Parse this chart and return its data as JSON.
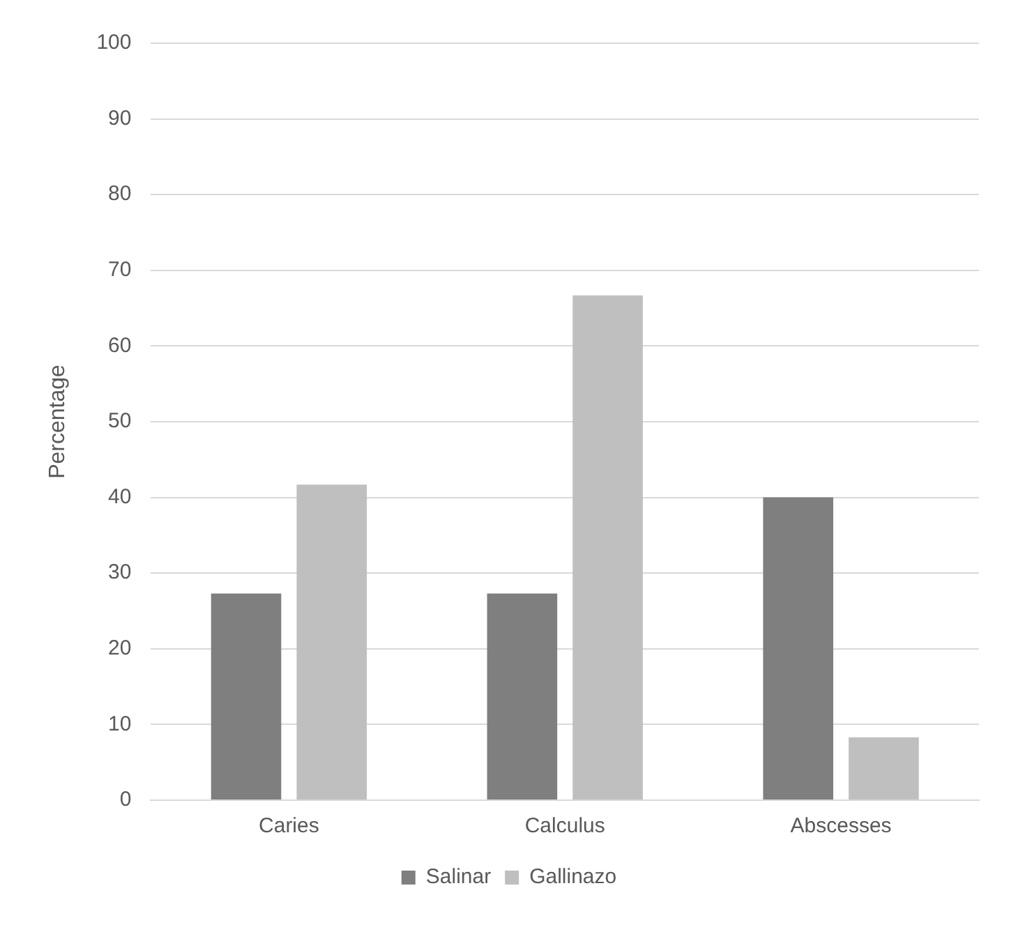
{
  "chart_data": {
    "type": "bar",
    "ylabel": "Percentage",
    "categories": [
      "Caries",
      "Calculus",
      "Abscesses"
    ],
    "series": [
      {
        "name": "Salinar",
        "color": "#7f7f7f",
        "values": [
          27.3,
          27.3,
          40
        ]
      },
      {
        "name": "Gallinazo",
        "color": "#bfbfbf",
        "values": [
          41.7,
          66.7,
          8.3
        ]
      }
    ],
    "ylim": [
      0,
      100
    ],
    "yticks": [
      0,
      10,
      20,
      30,
      40,
      50,
      60,
      70,
      80,
      90,
      100
    ],
    "grid": "y",
    "legend": "bottom"
  }
}
